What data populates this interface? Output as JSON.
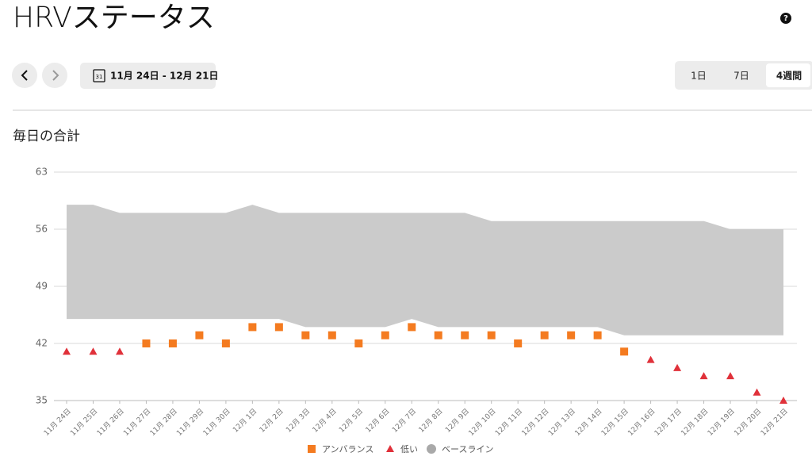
{
  "header": {
    "title": "HRVステータス",
    "help": "?"
  },
  "controls": {
    "calendar_day": "31",
    "date_range": "11月 24日 - 12月 21日",
    "periods": [
      "1日",
      "7日",
      "4週間"
    ],
    "selected_period": 2
  },
  "section_title": "毎日の合計",
  "chart_data": {
    "type": "line",
    "markers_only": true,
    "categories": [
      "11月 24日",
      "11月 25日",
      "11月 26日",
      "11月 27日",
      "11月 28日",
      "11月 29日",
      "11月 30日",
      "12月 1日",
      "12月 2日",
      "12月 3日",
      "12月 4日",
      "12月 5日",
      "12月 6日",
      "12月 7日",
      "12月 8日",
      "12月 9日",
      "12月 10日",
      "12月 11日",
      "12月 12日",
      "12月 13日",
      "12月 14日",
      "12月 15日",
      "12月 16日",
      "12月 17日",
      "12月 18日",
      "12月 19日",
      "12月 20日",
      "12月 21日"
    ],
    "series": [
      {
        "name": "アンバランス",
        "color": "#f47b20",
        "marker": "square",
        "values": [
          null,
          null,
          null,
          42,
          42,
          43,
          42,
          44,
          44,
          43,
          43,
          42,
          43,
          44,
          43,
          43,
          43,
          42,
          43,
          43,
          43,
          41,
          null,
          null,
          null,
          null,
          null,
          null
        ]
      },
      {
        "name": "低い",
        "color": "#e0313a",
        "marker": "triangle",
        "values": [
          41,
          41,
          41,
          null,
          null,
          null,
          null,
          null,
          null,
          null,
          null,
          null,
          null,
          null,
          null,
          null,
          null,
          null,
          null,
          null,
          null,
          null,
          40,
          39,
          38,
          38,
          36,
          35
        ]
      }
    ],
    "baseline": {
      "name": "ベースライン",
      "color": "#cbcbcb",
      "legend_color": "#a9a9a9",
      "upper": [
        59,
        59,
        58,
        58,
        58,
        58,
        58,
        59,
        58,
        58,
        58,
        58,
        58,
        58,
        58,
        58,
        57,
        57,
        57,
        57,
        57,
        57,
        57,
        57,
        57,
        56,
        56,
        56
      ],
      "lower": [
        45,
        45,
        45,
        45,
        45,
        45,
        45,
        45,
        45,
        44,
        44,
        44,
        44,
        45,
        44,
        44,
        44,
        44,
        44,
        44,
        44,
        43,
        43,
        43,
        43,
        43,
        43,
        43
      ]
    },
    "ylim": [
      35,
      63
    ],
    "yticks": [
      35,
      42,
      49,
      56,
      63
    ],
    "grid": true
  }
}
